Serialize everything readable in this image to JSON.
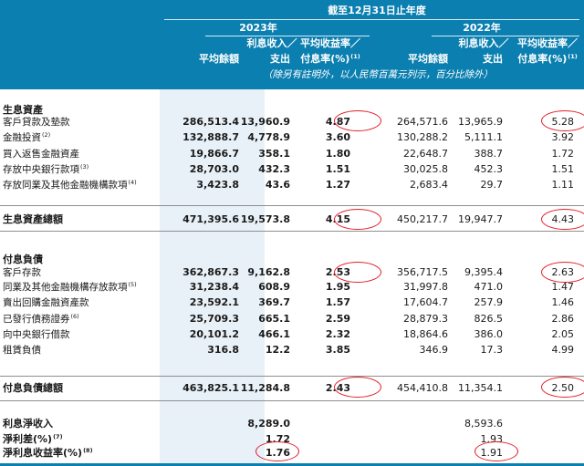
{
  "header": {
    "period": "截至12月31日止年度",
    "year_2023": "2023年",
    "year_2022": "2022年",
    "col_avg_balance": "平均餘額",
    "col_interest_l1": "利息收入／",
    "col_interest_l2": "支出",
    "col_rate_l1": "平均收益率／",
    "col_rate_l2": "付息率(%)",
    "col_rate_note": "(1)",
    "note": "（除另有註明外，以人民幣百萬元列示，百分比除外）"
  },
  "sections": {
    "assets": "生息資產",
    "assets_total": "生息資產總額",
    "liabilities": "付息負債",
    "liabilities_total": "付息負債總額"
  },
  "asset_rows": [
    {
      "label": "客戶貸款及墊款",
      "note": "",
      "v2023": [
        "286,513.4",
        "13,960.9",
        "4.87"
      ],
      "v2022": [
        "264,571.6",
        "13,965.9",
        "5.28"
      ]
    },
    {
      "label": "金融投資",
      "note": "(2)",
      "v2023": [
        "132,888.7",
        "4,778.9",
        "3.60"
      ],
      "v2022": [
        "130,288.2",
        "5,111.1",
        "3.92"
      ]
    },
    {
      "label": "買入返售金融資產",
      "note": "",
      "v2023": [
        "19,866.7",
        "358.1",
        "1.80"
      ],
      "v2022": [
        "22,648.7",
        "388.7",
        "1.72"
      ]
    },
    {
      "label": "存放中央銀行款項",
      "note": "(3)",
      "v2023": [
        "28,703.0",
        "432.3",
        "1.51"
      ],
      "v2022": [
        "30,025.8",
        "452.3",
        "1.51"
      ]
    },
    {
      "label": "存放同業及其他金融機構款項",
      "note": "(4)",
      "v2023": [
        "3,423.8",
        "43.6",
        "1.27"
      ],
      "v2022": [
        "2,683.4",
        "29.7",
        "1.11"
      ]
    }
  ],
  "asset_total": {
    "v2023": [
      "471,395.6",
      "19,573.8",
      "4.15"
    ],
    "v2022": [
      "450,217.7",
      "19,947.7",
      "4.43"
    ]
  },
  "liability_rows": [
    {
      "label": "客戶存款",
      "note": "",
      "v2023": [
        "362,867.3",
        "9,162.8",
        "2.53"
      ],
      "v2022": [
        "356,717.5",
        "9,395.4",
        "2.63"
      ]
    },
    {
      "label": "同業及其他金融機構存放款項",
      "note": "(5)",
      "v2023": [
        "31,238.4",
        "608.9",
        "1.95"
      ],
      "v2022": [
        "31,997.8",
        "471.0",
        "1.47"
      ]
    },
    {
      "label": "賣出回購金融資產款",
      "note": "",
      "v2023": [
        "23,592.1",
        "369.7",
        "1.57"
      ],
      "v2022": [
        "17,604.7",
        "257.9",
        "1.46"
      ]
    },
    {
      "label": "已發行債務證券",
      "note": "(6)",
      "v2023": [
        "25,709.3",
        "665.1",
        "2.59"
      ],
      "v2022": [
        "28,879.3",
        "826.5",
        "2.86"
      ]
    },
    {
      "label": "向中央銀行借款",
      "note": "",
      "v2023": [
        "20,101.2",
        "466.1",
        "2.32"
      ],
      "v2022": [
        "18,864.6",
        "386.0",
        "2.05"
      ]
    },
    {
      "label": "租賃負債",
      "note": "",
      "v2023": [
        "316.8",
        "12.2",
        "3.85"
      ],
      "v2022": [
        "346.9",
        "17.3",
        "4.99"
      ]
    }
  ],
  "liability_total": {
    "v2023": [
      "463,825.1",
      "11,284.8",
      "2.43"
    ],
    "v2022": [
      "454,410.8",
      "11,354.1",
      "2.50"
    ]
  },
  "summary_rows": [
    {
      "label": "利息淨收入",
      "note": "",
      "v2023": "8,289.0",
      "v2022": "8,593.6"
    },
    {
      "label": "淨利差(%)",
      "note": "(7)",
      "v2023": "1.72",
      "v2022": "1.93"
    },
    {
      "label": "淨利息收益率(%)",
      "note": "(8)",
      "v2023": "1.76",
      "v2022": "1.91"
    }
  ],
  "colors": {
    "header_bg": "#0b7fb0",
    "column_shade": "#e8f1f8",
    "highlight_circle": "#e21f2b"
  }
}
